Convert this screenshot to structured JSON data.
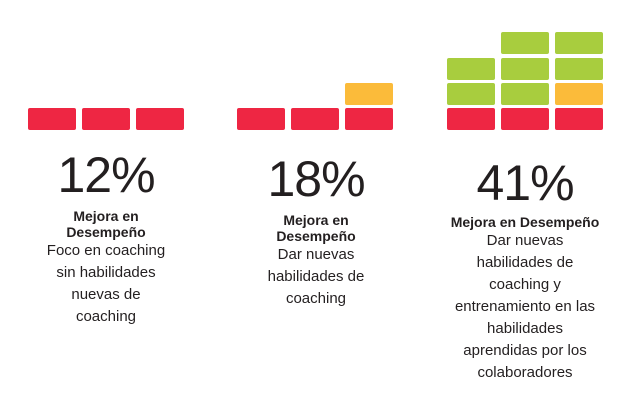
{
  "colors": {
    "red": "#ee2643",
    "green": "#a8cd3e",
    "orange": "#fbbb3a"
  },
  "stats": [
    {
      "percent": "12%",
      "heading": "Mejora en Desempeño",
      "description": "Foco en coaching sin habilidades nuevas de coaching",
      "blocks": {
        "red": 3,
        "orange": 0,
        "green": 0
      }
    },
    {
      "percent": "18%",
      "heading": "Mejora en Desempeño",
      "description": "Dar nuevas habilidades de coaching",
      "blocks": {
        "red": 3,
        "orange": 1,
        "green": 0
      }
    },
    {
      "percent": "41%",
      "heading": "Mejora en Desempeño",
      "description": "Dar nuevas habilidades de coaching y entrenamiento en las habilidades aprendidas por los colaboradores",
      "blocks": {
        "red": 3,
        "orange": 1,
        "green": 7
      }
    }
  ]
}
